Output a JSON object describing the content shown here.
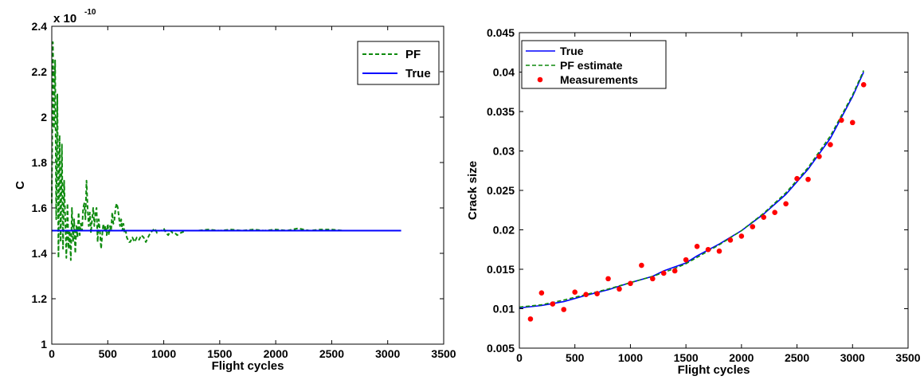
{
  "chart_data": [
    {
      "type": "line",
      "xlabel": "Flight cycles",
      "ylabel": "C",
      "exponent_label": "x 10",
      "exponent_power": "-10",
      "xlim": [
        0,
        3500
      ],
      "ylim": [
        1,
        2.4
      ],
      "xticks": [
        "0",
        "500",
        "1000",
        "1500",
        "2000",
        "2500",
        "3000",
        "3500"
      ],
      "yticks": [
        "1",
        "1.2",
        "1.4",
        "1.6",
        "1.8",
        "2",
        "2.2",
        "2.4"
      ],
      "legend_position": "top-right",
      "colors": {
        "pf": "#0e8a0e",
        "true": "#0000ff"
      },
      "series": [
        {
          "name": "PF",
          "style": "dashed",
          "x": [
            0,
            10,
            20,
            30,
            40,
            50,
            60,
            70,
            80,
            90,
            100,
            110,
            120,
            130,
            140,
            150,
            160,
            170,
            180,
            190,
            200,
            210,
            220,
            230,
            240,
            250,
            260,
            270,
            280,
            290,
            300,
            310,
            320,
            330,
            340,
            350,
            360,
            370,
            380,
            390,
            400,
            410,
            420,
            430,
            440,
            450,
            460,
            470,
            480,
            490,
            500,
            510,
            520,
            530,
            540,
            550,
            560,
            570,
            580,
            590,
            600,
            610,
            620,
            630,
            640,
            650,
            660,
            670,
            680,
            690,
            700,
            720,
            740,
            760,
            780,
            800,
            820,
            840,
            860,
            880,
            900,
            920,
            940,
            960,
            980,
            1000,
            1020,
            1040,
            1060,
            1080,
            1100,
            1120,
            1150,
            1200,
            1300,
            1400,
            1500,
            1600,
            1700,
            1800,
            1900,
            2000,
            2100,
            2200,
            2250,
            2300,
            2400,
            2500,
            2600,
            2700,
            2800,
            2900,
            3000,
            3100
          ],
          "y": [
            1.62,
            2.33,
            1.95,
            2.25,
            1.55,
            2.1,
            1.38,
            1.92,
            1.45,
            1.88,
            1.42,
            1.72,
            1.55,
            1.38,
            1.62,
            1.42,
            1.5,
            1.37,
            1.6,
            1.45,
            1.55,
            1.4,
            1.52,
            1.47,
            1.58,
            1.48,
            1.53,
            1.5,
            1.6,
            1.62,
            1.55,
            1.72,
            1.6,
            1.52,
            1.58,
            1.49,
            1.55,
            1.6,
            1.52,
            1.58,
            1.6,
            1.45,
            1.55,
            1.5,
            1.42,
            1.48,
            1.53,
            1.5,
            1.52,
            1.48,
            1.53,
            1.48,
            1.52,
            1.5,
            1.58,
            1.53,
            1.55,
            1.6,
            1.62,
            1.6,
            1.56,
            1.52,
            1.55,
            1.5,
            1.53,
            1.49,
            1.5,
            1.47,
            1.46,
            1.45,
            1.45,
            1.47,
            1.45,
            1.47,
            1.46,
            1.48,
            1.47,
            1.45,
            1.47,
            1.49,
            1.5,
            1.51,
            1.49,
            1.5,
            1.5,
            1.51,
            1.49,
            1.48,
            1.5,
            1.49,
            1.49,
            1.48,
            1.49,
            1.5,
            1.5,
            1.505,
            1.5,
            1.505,
            1.5,
            1.505,
            1.5,
            1.505,
            1.5,
            1.51,
            1.505,
            1.5,
            1.505,
            1.505,
            1.5,
            1.5,
            1.5,
            1.5,
            1.5,
            1.5
          ]
        },
        {
          "name": "True",
          "style": "solid",
          "x": [
            0,
            3120
          ],
          "y": [
            1.5,
            1.5
          ]
        }
      ]
    },
    {
      "type": "line",
      "xlabel": "Flight cycles",
      "ylabel": "Crack size",
      "xlim": [
        0,
        3500
      ],
      "ylim": [
        0.005,
        0.045
      ],
      "xticks": [
        "0",
        "500",
        "1000",
        "1500",
        "2000",
        "2500",
        "3000",
        "3500"
      ],
      "yticks": [
        "0.005",
        "0.01",
        "0.015",
        "0.02",
        "0.025",
        "0.03",
        "0.035",
        "0.04",
        "0.045"
      ],
      "legend_position": "top-left",
      "colors": {
        "true": "#0000ff",
        "pf": "#0e8a0e",
        "measurements": "#ff0000"
      },
      "series": [
        {
          "name": "True",
          "style": "solid",
          "x": [
            0,
            200,
            400,
            600,
            800,
            1000,
            1200,
            1300,
            1400,
            1500,
            1600,
            1800,
            2000,
            2200,
            2400,
            2600,
            2800,
            3000,
            3100
          ],
          "y": [
            0.0101,
            0.0104,
            0.0109,
            0.0117,
            0.0124,
            0.0133,
            0.0141,
            0.0148,
            0.0153,
            0.0158,
            0.0167,
            0.0182,
            0.0199,
            0.022,
            0.0245,
            0.0277,
            0.0316,
            0.0369,
            0.04
          ]
        },
        {
          "name": "PF estimate",
          "style": "dashed",
          "x": [
            0,
            200,
            400,
            600,
            800,
            1000,
            1200,
            1300,
            1400,
            1500,
            1600,
            1800,
            2000,
            2200,
            2400,
            2600,
            2800,
            3000,
            3100
          ],
          "y": [
            0.0102,
            0.0105,
            0.0111,
            0.0118,
            0.0125,
            0.0133,
            0.0141,
            0.0146,
            0.0151,
            0.0157,
            0.0165,
            0.0181,
            0.0199,
            0.0221,
            0.0247,
            0.0279,
            0.0319,
            0.0371,
            0.0402
          ]
        },
        {
          "name": "Measurements",
          "style": "markers",
          "x": [
            100,
            200,
            300,
            400,
            500,
            600,
            700,
            800,
            900,
            1000,
            1100,
            1200,
            1300,
            1400,
            1500,
            1600,
            1700,
            1800,
            1900,
            2000,
            2100,
            2200,
            2300,
            2400,
            2500,
            2600,
            2700,
            2800,
            2900,
            3000,
            3100
          ],
          "y": [
            0.0087,
            0.012,
            0.0106,
            0.0099,
            0.0121,
            0.0118,
            0.0119,
            0.0138,
            0.0125,
            0.0132,
            0.0155,
            0.0138,
            0.0145,
            0.0148,
            0.0162,
            0.0179,
            0.0175,
            0.0173,
            0.0187,
            0.0192,
            0.0204,
            0.0216,
            0.0222,
            0.0233,
            0.0265,
            0.0264,
            0.0293,
            0.0308,
            0.0339,
            0.0336,
            0.0384
          ]
        }
      ]
    }
  ]
}
